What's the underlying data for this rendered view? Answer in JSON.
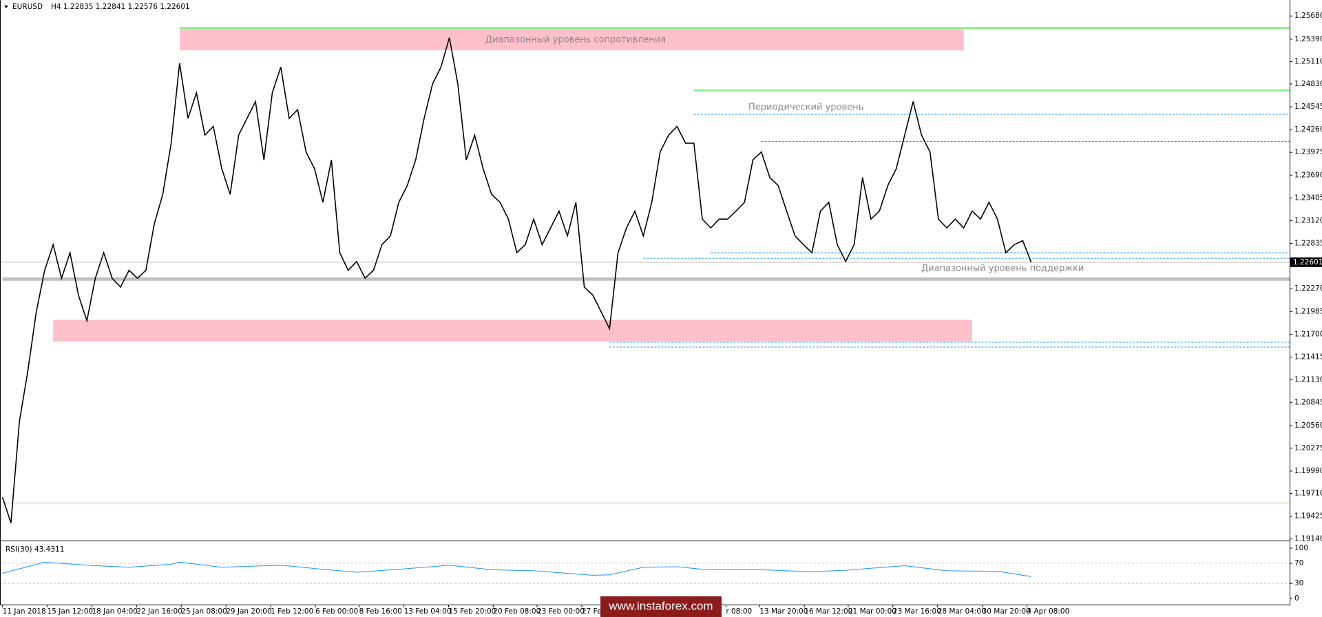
{
  "chart_data": [
    {
      "type": "line",
      "timeframe": "H4",
      "ohlc": "1.22835 1.22841 1.22576 1.22601",
      "watermark": "www.instaforex.com",
      "xlim": [
        0,
        122
      ],
      "xticks": [
        {
          "value": 0,
          "label": "11 Jan 2018"
        },
        {
          "value": 5.3,
          "label": "15 Jan 12:00"
        },
        {
          "value": 10.6,
          "label": "18 Jan 04:00"
        },
        {
          "value": 15.9,
          "label": "22 Jan 16:00"
        },
        {
          "value": 21.2,
          "label": "25 Jan 08:00"
        },
        {
          "value": 26.5,
          "label": "29 Jan 20:00"
        },
        {
          "value": 31.8,
          "label": "1 Feb 12:00"
        },
        {
          "value": 37.1,
          "label": "6 Feb 00:00"
        },
        {
          "value": 42.3,
          "label": "8 Feb 16:00"
        },
        {
          "value": 47.6,
          "label": "13 Feb 04:00"
        },
        {
          "value": 52.9,
          "label": "15 Feb 20:00"
        },
        {
          "value": 58.2,
          "label": "20 Feb 08:00"
        },
        {
          "value": 63.4,
          "label": "23 Feb 00:00"
        },
        {
          "value": 68.7,
          "label": "27 Feb 1"
        },
        {
          "value": 85.8,
          "label": "r 08:00"
        },
        {
          "value": 89.8,
          "label": "13 Mar 20:00"
        },
        {
          "value": 95.1,
          "label": "16 Mar 12:00"
        },
        {
          "value": 100.3,
          "label": "21 Mar 00:00"
        },
        {
          "value": 105.6,
          "label": "23 Mar 16:00"
        },
        {
          "value": 110.9,
          "label": "28 Mar 04:00"
        },
        {
          "value": 116.2,
          "label": "30 Mar 20:00"
        },
        {
          "value": 121.5,
          "label": "4 Apr 08:00"
        }
      ],
      "ylim": [
        1.1912,
        1.2588
      ],
      "yticks": [
        {
          "value": 1.2568,
          "label": "1.25680"
        },
        {
          "value": 1.2539,
          "label": "1.25390"
        },
        {
          "value": 1.2511,
          "label": "1.25110"
        },
        {
          "value": 1.2483,
          "label": "1.24830"
        },
        1.24545,
        {
          "value": 1.2426,
          "label": "1.24260"
        },
        1.23975,
        {
          "value": 1.2369,
          "label": "1.23690"
        },
        1.23405,
        {
          "value": 1.2312,
          "label": "1.23120"
        },
        1.22835,
        {
          "value": 1.2227,
          "label": "1.22270"
        },
        1.21985,
        {
          "value": 1.217,
          "label": "1.21700"
        },
        1.21415,
        {
          "value": 1.2113,
          "label": "1.21130"
        },
        1.20845,
        {
          "value": 1.2056,
          "label": "1.20560"
        },
        1.20275,
        {
          "value": 1.1999,
          "label": "1.19990"
        },
        {
          "value": 1.1971,
          "label": "1.19710"
        },
        1.19425,
        {
          "value": 1.1914,
          "label": "1.19140"
        }
      ],
      "series": [
        {
          "name": "EURUSD",
          "color": "#000000",
          "values": [
            1.1966,
            1.1934,
            1.2061,
            1.2124,
            1.2198,
            1.225,
            1.2282,
            1.224,
            1.2272,
            1.2219,
            1.2187,
            1.224,
            1.2272,
            1.224,
            1.2229,
            1.225,
            1.224,
            1.225,
            1.2308,
            1.2345,
            1.2409,
            1.2509,
            1.244,
            1.2472,
            1.2419,
            1.243,
            1.2377,
            1.2345,
            1.2419,
            1.244,
            1.2461,
            1.2388,
            1.2472,
            1.2504,
            1.244,
            1.2451,
            1.2398,
            1.2377,
            1.2335,
            1.2388,
            1.2272,
            1.225,
            1.2261,
            1.224,
            1.225,
            1.2282,
            1.2293,
            1.2335,
            1.2356,
            1.2388,
            1.244,
            1.2483,
            1.2504,
            1.2541,
            1.2483,
            1.2388,
            1.2419,
            1.2377,
            1.2345,
            1.2335,
            1.2314,
            1.2272,
            1.2282,
            1.2314,
            1.2282,
            1.2303,
            1.2324,
            1.2293,
            1.2335,
            1.2229,
            1.2219,
            1.2198,
            1.2177,
            1.2272,
            1.2303,
            1.2324,
            1.2293,
            1.2335,
            1.2398,
            1.2419,
            1.243,
            1.2409,
            1.2409,
            1.2314,
            1.2303,
            1.2314,
            1.2314,
            1.2324,
            1.2335,
            1.2388,
            1.2398,
            1.2366,
            1.2356,
            1.2324,
            1.2293,
            1.2282,
            1.2272,
            1.2324,
            1.2335,
            1.2282,
            1.2261,
            1.2282,
            1.2366,
            1.2314,
            1.2324,
            1.2356,
            1.2377,
            1.2419,
            1.2461,
            1.2419,
            1.2398,
            1.2314,
            1.2303,
            1.2314,
            1.2303,
            1.2324,
            1.2314,
            1.2335,
            1.2314,
            1.2272,
            1.2282,
            1.2287,
            1.22601
          ]
        }
      ],
      "bands": [
        {
          "low": 1.2525,
          "high": 1.2552,
          "from": 21,
          "to": 114,
          "color": "#ffc0cb"
        },
        {
          "low": 1.2161,
          "high": 1.2188,
          "from": 6,
          "to": 115,
          "color": "#ffc0cb"
        }
      ],
      "levels": [
        {
          "value": 1.2239,
          "from": 0,
          "color": "#c0c0c0",
          "style": "thick"
        },
        {
          "value": 1.2553,
          "from": 21,
          "color": "#90ee90",
          "style": "solid"
        },
        {
          "value": 1.2475,
          "from": 82,
          "color": "#90ee90",
          "style": "solid"
        },
        {
          "value": 1.1959,
          "from": 0,
          "color": "#90ee90",
          "style": "thin"
        },
        {
          "value": 1.2445,
          "from": 82,
          "color": "#1e90ff",
          "style": "dashed"
        },
        {
          "value": 1.2411,
          "from": 90,
          "color": "#1e90ff",
          "style": "dashed"
        },
        {
          "value": 1.2272,
          "from": 84,
          "color": "#1e90ff",
          "style": "dashed"
        },
        {
          "value": 1.2265,
          "from": 76,
          "color": "#1e90ff",
          "style": "dashed"
        },
        {
          "value": 1.216,
          "from": 72,
          "color": "#1e90ff",
          "style": "dashed"
        },
        {
          "value": 1.2154,
          "from": 72,
          "color": "#1e90ff",
          "style": "dashed"
        }
      ],
      "annotations": [
        "Диапазонный  уровень  сопротивления",
        "Периодический уровень",
        "Диапазонный  уровень  поддержки"
      ]
    },
    {
      "type": "line",
      "title": "RSI(30) 43.4311",
      "xlim": [
        0,
        122
      ],
      "ylim": [
        0,
        100
      ],
      "yticks": [
        0,
        30,
        70,
        100
      ],
      "series": [
        {
          "color": "#1e90ff",
          "x": [
            0,
            5,
            10,
            15,
            20,
            21,
            26,
            33,
            38,
            42,
            47,
            53,
            58,
            63,
            70,
            72,
            76,
            80,
            83,
            90,
            96,
            100,
            107,
            112,
            118,
            122
          ],
          "values": [
            50,
            72,
            66,
            62,
            68,
            72,
            62,
            66,
            58,
            52,
            58,
            66,
            57,
            55,
            46,
            47,
            62,
            63,
            58,
            57,
            53,
            56,
            65,
            55,
            54,
            43.4311
          ]
        }
      ]
    }
  ]
}
